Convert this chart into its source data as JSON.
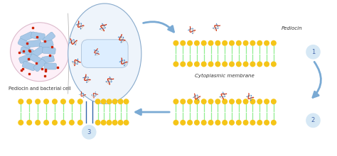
{
  "bg_color": "#ffffff",
  "label_pediocin_bacterial": "Pediocin and bacterial cell",
  "label_cytoplasmic": "Cytoplasmic membrane",
  "label_pediocin": "Pediocin",
  "label_1": "1",
  "label_2": "2",
  "label_3": "3",
  "membrane_color_head": "#f5c518",
  "membrane_color_tail": "#90ee90",
  "pediocin_red": "#cc2200",
  "pediocin_blue": "#4488cc",
  "arrow_color": "#7aaad4",
  "step_circle_color": "#d6e8f5",
  "bacterium_color": "#a8c8e8",
  "bacterium_edge": "#7aa8c8",
  "small_circle_bg": "#faf0f8",
  "small_circle_edge": "#cccccc",
  "large_oval_bg": "#eef4fb",
  "large_oval_edge": "#88aacc",
  "inner_cell_bg": "#ddeeff",
  "inner_cell_edge": "#aac0d8"
}
